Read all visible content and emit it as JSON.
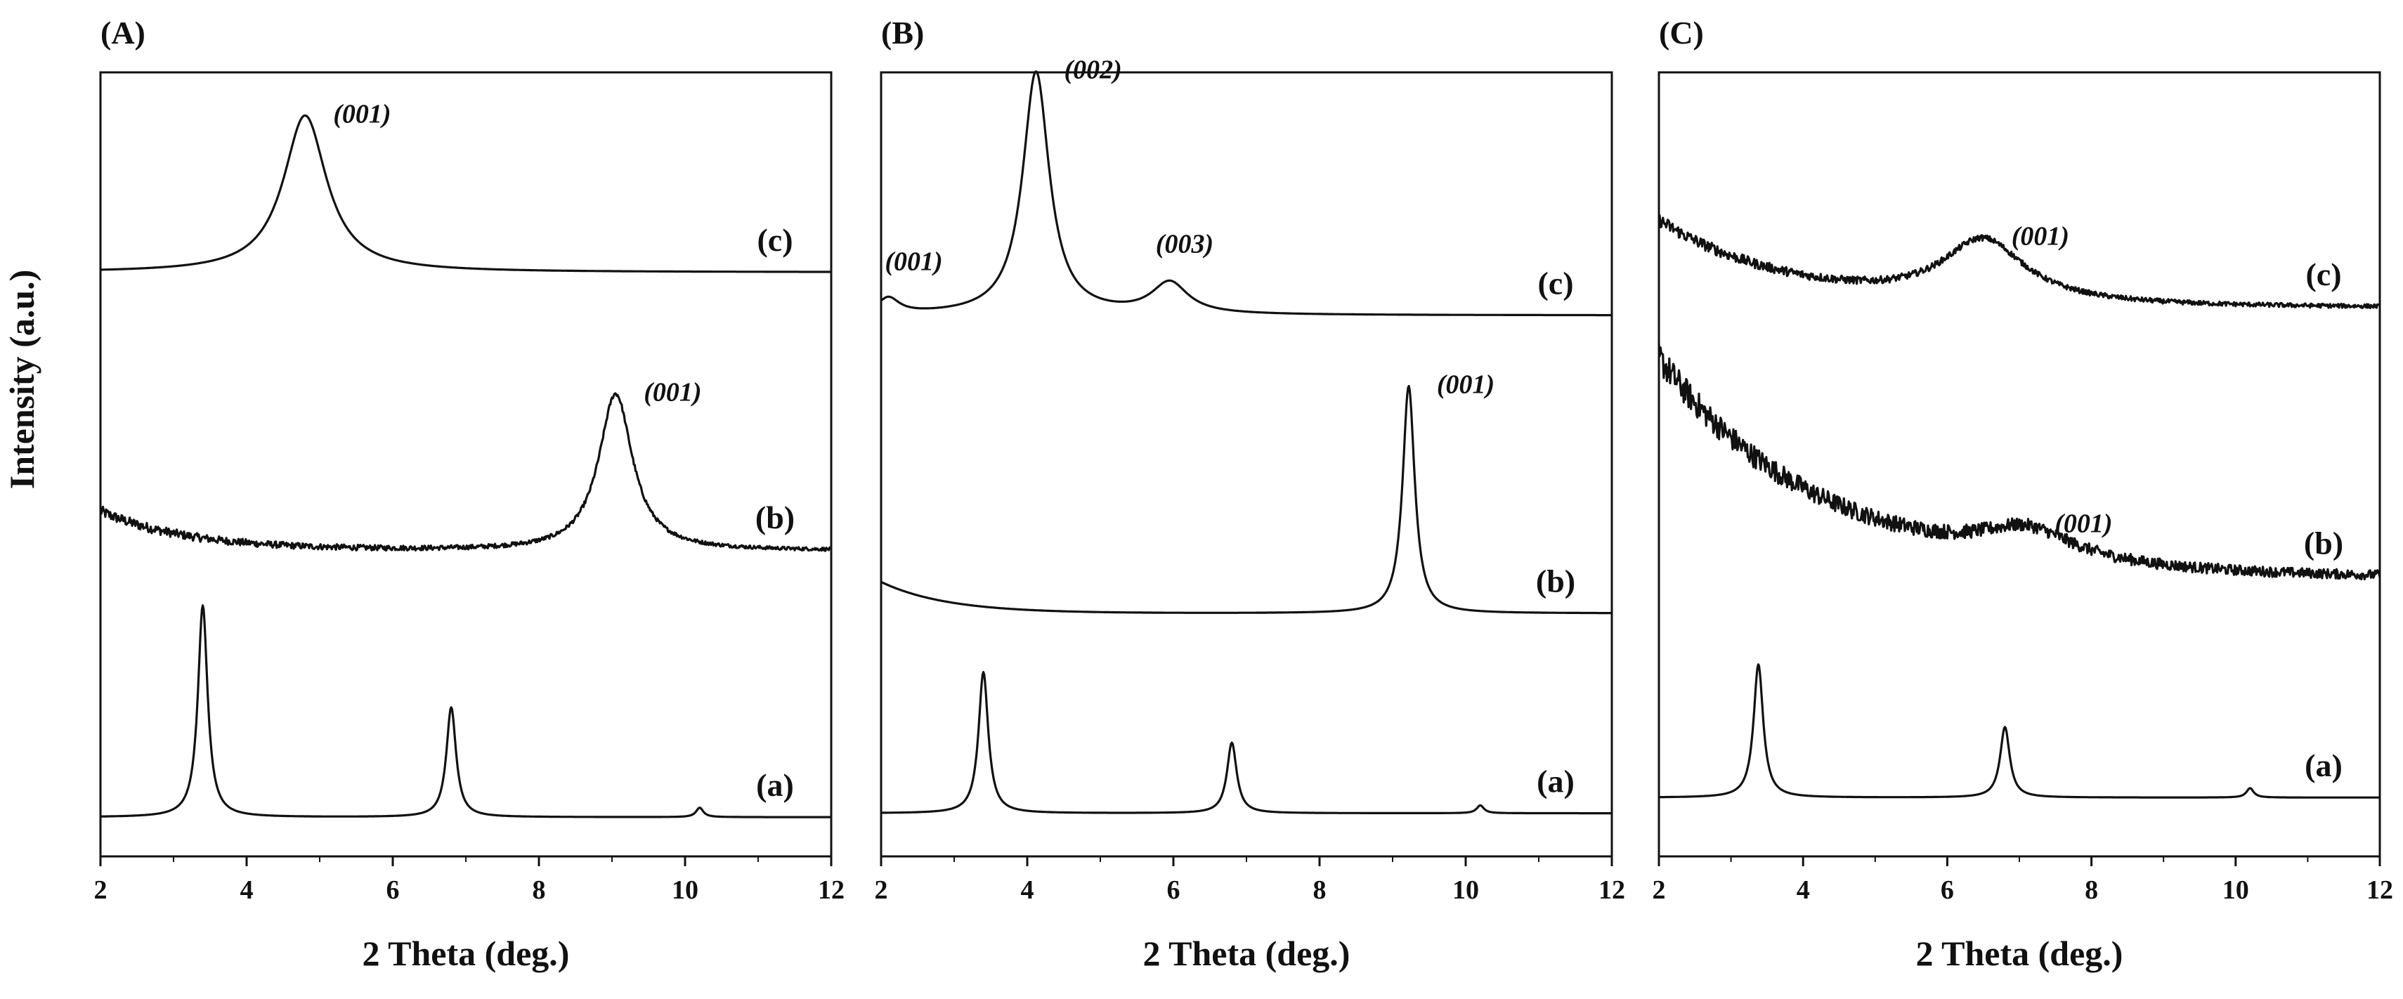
{
  "y_axis_label": "Intensity (a.u.)",
  "chart_data": [
    {
      "type": "line",
      "panel": "(A)",
      "xlabel": "2 Theta (deg.)",
      "ylabel": "Intensity (a.u.)",
      "xlim": [
        2,
        12
      ],
      "xticks": [
        "2",
        "4",
        "6",
        "8",
        "10",
        "12"
      ],
      "grid": false,
      "series": [
        {
          "name": "(a)",
          "baseline": 0.05,
          "peaks": [
            {
              "two_theta": 3.4,
              "height": 0.27,
              "width": 0.08
            },
            {
              "two_theta": 6.8,
              "height": 0.14,
              "width": 0.08
            },
            {
              "two_theta": 10.2,
              "height": 0.012,
              "width": 0.06
            }
          ],
          "annotations": []
        },
        {
          "name": "(b)",
          "baseline": 0.39,
          "slope": {
            "amp": 0.05,
            "decay": 1.2
          },
          "noise": 0.005,
          "peaks": [
            {
              "two_theta": 9.05,
              "height": 0.2,
              "width": 0.28
            }
          ],
          "annotations": [
            {
              "label": "(001)",
              "two_theta": 9.05
            }
          ]
        },
        {
          "name": "(c)",
          "baseline": 0.745,
          "peaks": [
            {
              "two_theta": 4.8,
              "height": 0.2,
              "width": 0.36
            }
          ],
          "annotations": [
            {
              "label": "(001)",
              "two_theta": 4.8
            }
          ]
        }
      ]
    },
    {
      "type": "line",
      "panel": "(B)",
      "xlabel": "2 Theta (deg.)",
      "ylabel": "Intensity (a.u.)",
      "xlim": [
        2,
        12
      ],
      "xticks": [
        "2",
        "4",
        "6",
        "8",
        "10",
        "12"
      ],
      "grid": false,
      "series": [
        {
          "name": "(a)",
          "baseline": 0.055,
          "peaks": [
            {
              "two_theta": 3.4,
              "height": 0.18,
              "width": 0.08
            },
            {
              "two_theta": 6.8,
              "height": 0.09,
              "width": 0.08
            },
            {
              "two_theta": 10.2,
              "height": 0.01,
              "width": 0.06
            }
          ],
          "annotations": []
        },
        {
          "name": "(b)",
          "baseline": 0.31,
          "slope": {
            "amp": 0.04,
            "decay": 0.9
          },
          "peaks": [
            {
              "two_theta": 9.22,
              "height": 0.29,
              "width": 0.1
            }
          ],
          "annotations": [
            {
              "label": "(001)",
              "two_theta": 9.22
            }
          ]
        },
        {
          "name": "(c)",
          "baseline": 0.69,
          "peaks": [
            {
              "two_theta": 2.1,
              "height": 0.02,
              "width": 0.18
            },
            {
              "two_theta": 4.12,
              "height": 0.31,
              "width": 0.22
            },
            {
              "two_theta": 5.95,
              "height": 0.04,
              "width": 0.3
            }
          ],
          "annotations": [
            {
              "label": "(001)",
              "two_theta": 2.1
            },
            {
              "label": "(002)",
              "two_theta": 4.12
            },
            {
              "label": "(003)",
              "two_theta": 5.95
            }
          ]
        }
      ]
    },
    {
      "type": "line",
      "panel": "(C)",
      "xlabel": "2 Theta (deg.)",
      "ylabel": "Intensity (a.u.)",
      "xlim": [
        2,
        12
      ],
      "xticks": [
        "2",
        "4",
        "6",
        "8",
        "10",
        "12"
      ],
      "grid": false,
      "series": [
        {
          "name": "(a)",
          "baseline": 0.075,
          "peaks": [
            {
              "two_theta": 3.38,
              "height": 0.17,
              "width": 0.08
            },
            {
              "two_theta": 6.8,
              "height": 0.09,
              "width": 0.08
            },
            {
              "two_theta": 10.2,
              "height": 0.012,
              "width": 0.06
            }
          ],
          "annotations": []
        },
        {
          "name": "(b)",
          "baseline": 0.355,
          "slope": {
            "amp": 0.28,
            "decay": 2.2
          },
          "noise": 0.014,
          "peaks": [
            {
              "two_theta": 7.1,
              "height": 0.04,
              "width": 0.8
            }
          ],
          "annotations": [
            {
              "label": "(001)",
              "two_theta": 7.1
            }
          ]
        },
        {
          "name": "(c)",
          "baseline": 0.7,
          "slope": {
            "amp": 0.11,
            "decay": 1.8
          },
          "noise": 0.006,
          "peaks": [
            {
              "two_theta": 6.5,
              "height": 0.08,
              "width": 0.7
            }
          ],
          "annotations": [
            {
              "label": "(001)",
              "two_theta": 6.5
            }
          ]
        }
      ]
    }
  ]
}
